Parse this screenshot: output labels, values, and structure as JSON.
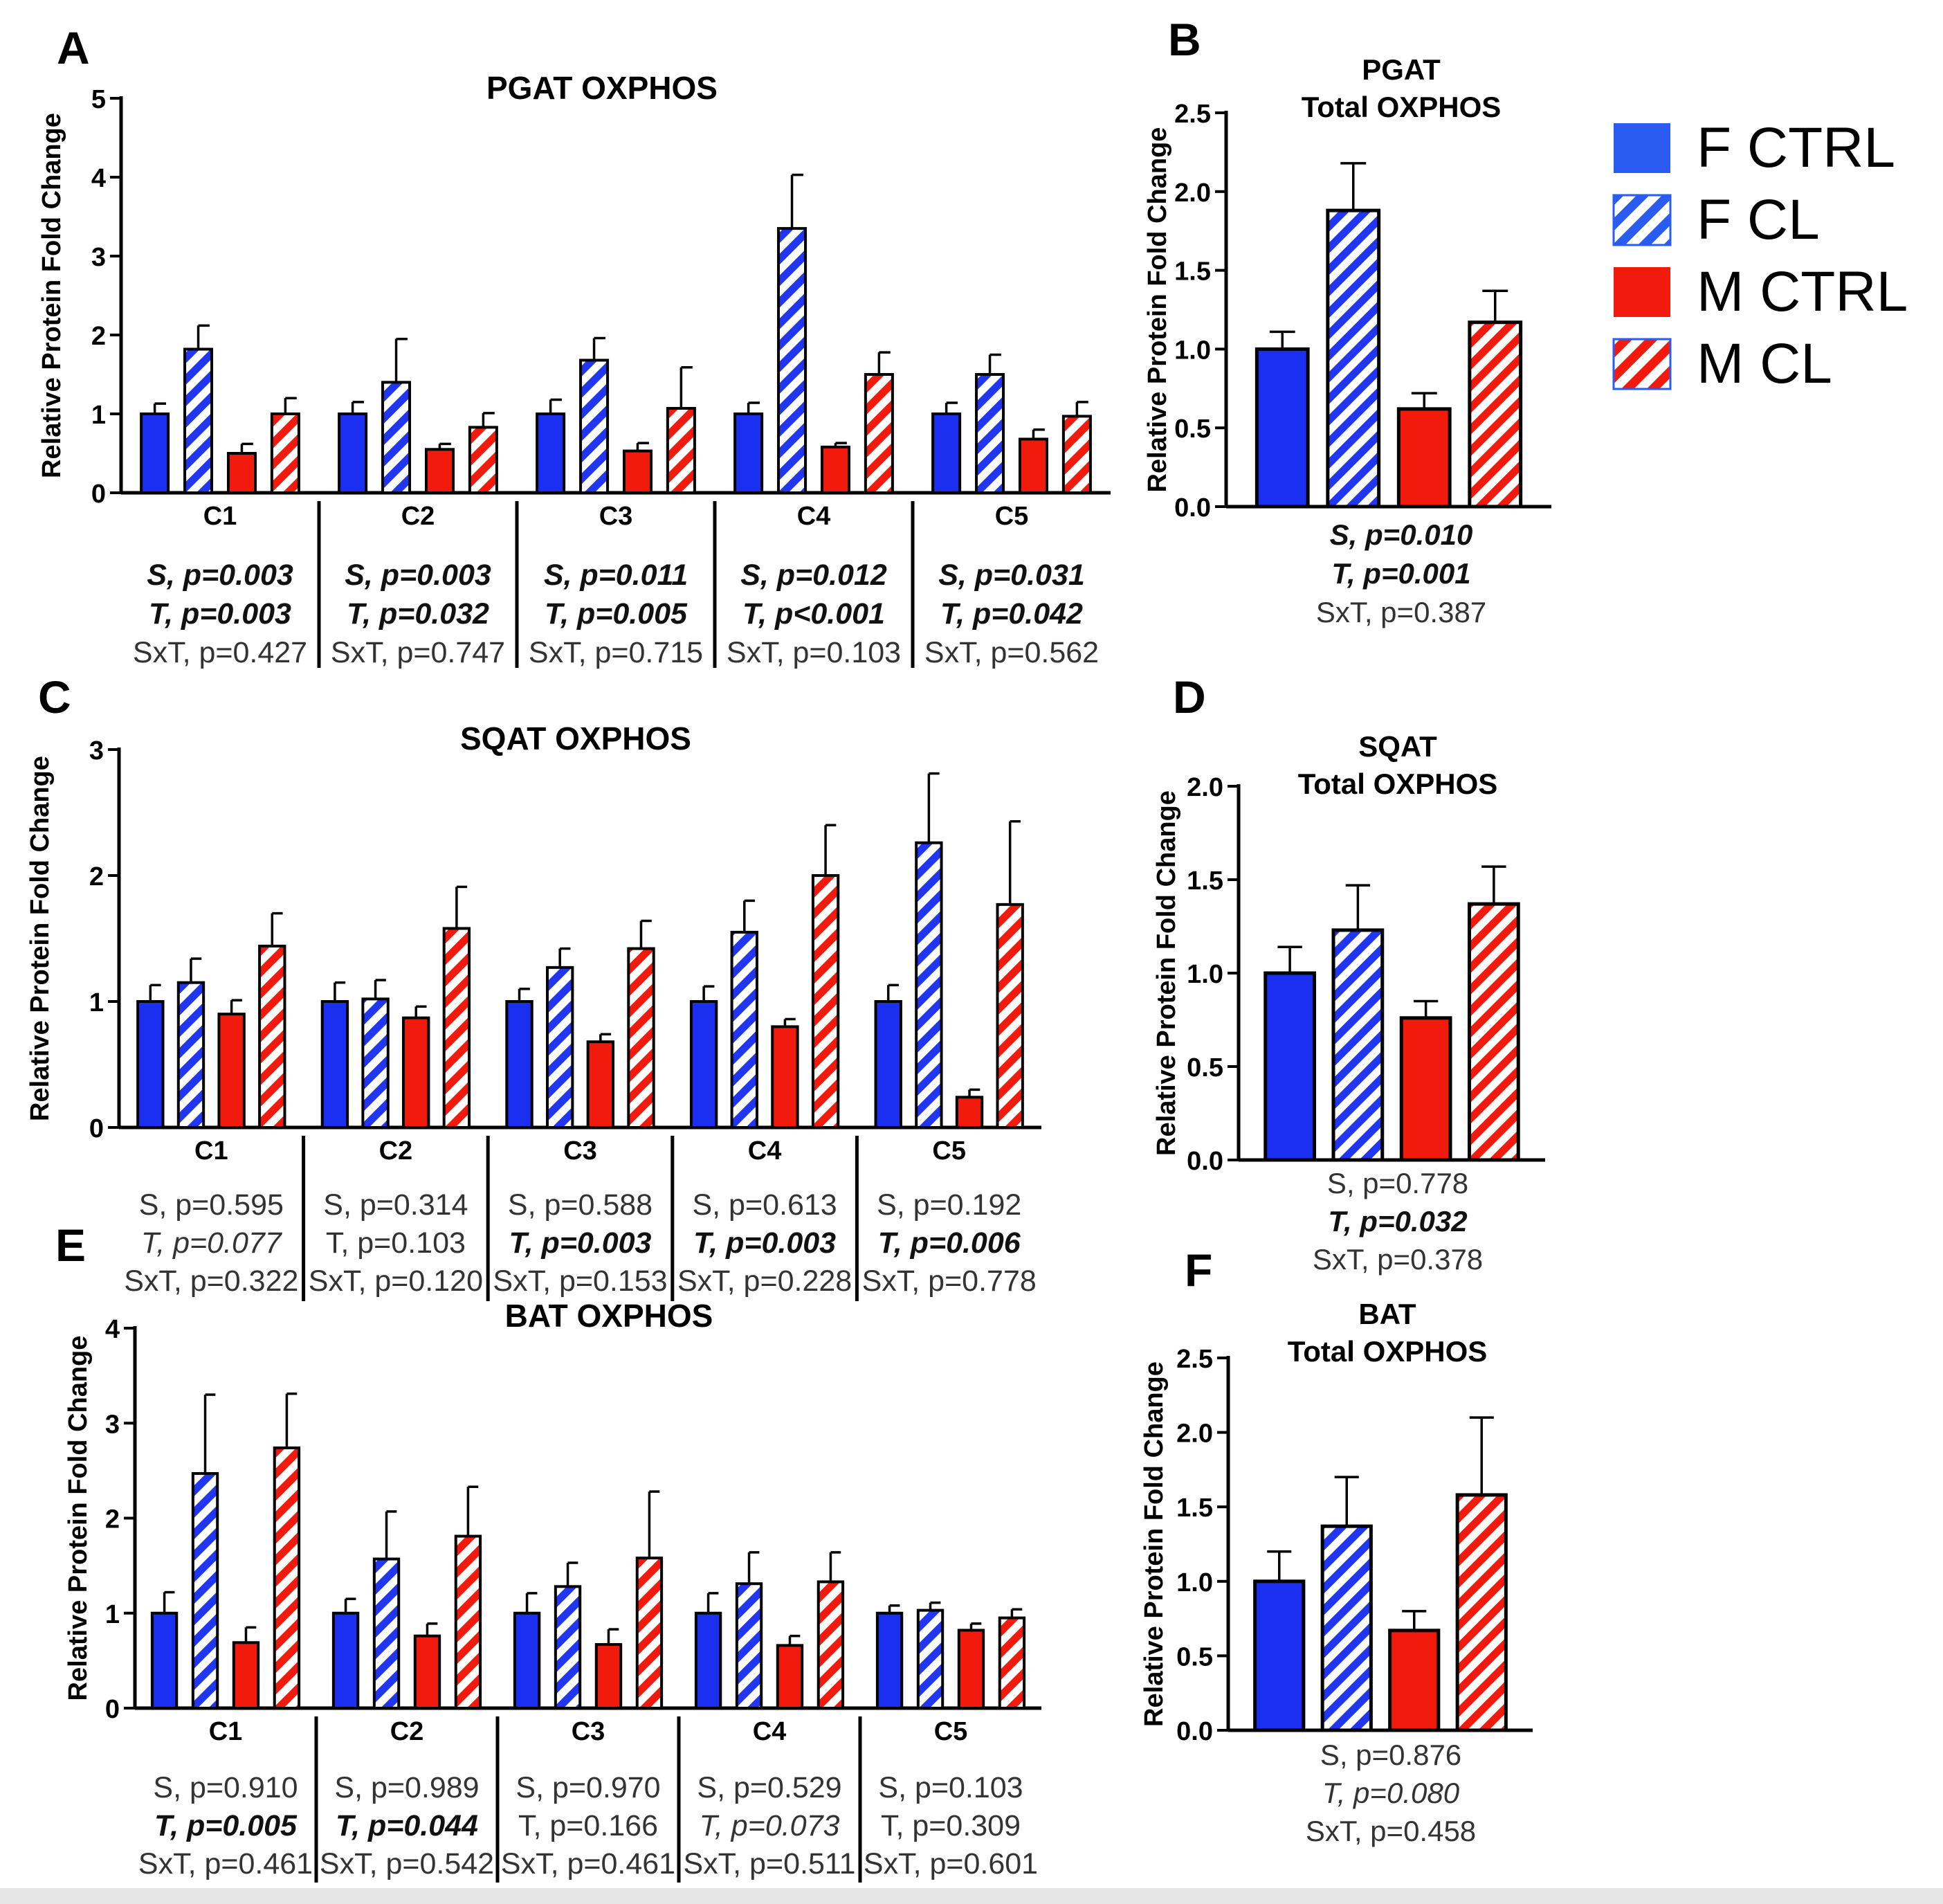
{
  "colors": {
    "f_ctrl": "#1a2ff0",
    "m_ctrl": "#f21a0c",
    "stroke": "#000000",
    "stats_normal": "#333333",
    "stats_bold": "#111111"
  },
  "legend": {
    "entries": [
      {
        "label": "F CTRL",
        "color": "#2a5cf2",
        "hatched": false
      },
      {
        "label": "F CL",
        "color": "#2a5cf2",
        "hatched": true
      },
      {
        "label": "M CTRL",
        "color": "#f21a0c",
        "hatched": false
      },
      {
        "label": "M CL",
        "color": "#f21a0c",
        "hatched": true
      }
    ]
  },
  "chart_data": [
    {
      "panel": "A",
      "type": "bar",
      "title": "PGAT OXPHOS",
      "ylabel": "Relative Protein Fold Change",
      "ylim": [
        0,
        5
      ],
      "yticks": [
        "0",
        "1",
        "2",
        "3",
        "4",
        "5"
      ],
      "categories": [
        "C1",
        "C2",
        "C3",
        "C4",
        "C5"
      ],
      "series": [
        {
          "name": "F CTRL",
          "values": [
            1.0,
            1.0,
            1.0,
            1.0,
            1.0
          ],
          "errors": [
            0.13,
            0.15,
            0.18,
            0.14,
            0.14
          ]
        },
        {
          "name": "F CL",
          "values": [
            1.82,
            1.4,
            1.68,
            3.35,
            1.5
          ],
          "errors": [
            0.3,
            0.55,
            0.28,
            0.68,
            0.25
          ]
        },
        {
          "name": "M CTRL",
          "values": [
            0.5,
            0.55,
            0.53,
            0.58,
            0.68
          ],
          "errors": [
            0.12,
            0.07,
            0.1,
            0.05,
            0.12
          ]
        },
        {
          "name": "M CL",
          "values": [
            1.0,
            0.83,
            1.07,
            1.5,
            0.97
          ],
          "errors": [
            0.2,
            0.18,
            0.52,
            0.28,
            0.18
          ]
        }
      ],
      "stats": [
        [
          {
            "text": "S, p=0.003",
            "style": "bi"
          },
          {
            "text": "T, p=0.003",
            "style": "bi"
          },
          {
            "text": "SxT, p=0.427",
            "style": "n"
          }
        ],
        [
          {
            "text": "S, p=0.003",
            "style": "bi"
          },
          {
            "text": "T, p=0.032",
            "style": "bi"
          },
          {
            "text": "SxT, p=0.747",
            "style": "n"
          }
        ],
        [
          {
            "text": "S, p=0.011",
            "style": "bi"
          },
          {
            "text": "T, p=0.005",
            "style": "bi"
          },
          {
            "text": "SxT, p=0.715",
            "style": "n"
          }
        ],
        [
          {
            "text": "S, p=0.012",
            "style": "bi"
          },
          {
            "text": "T, p<0.001",
            "style": "bi"
          },
          {
            "text": "SxT, p=0.103",
            "style": "n"
          }
        ],
        [
          {
            "text": "S, p=0.031",
            "style": "bi"
          },
          {
            "text": "T, p=0.042",
            "style": "bi"
          },
          {
            "text": "SxT, p=0.562",
            "style": "n"
          }
        ]
      ]
    },
    {
      "panel": "B",
      "type": "bar",
      "title": [
        "PGAT",
        "Total OXPHOS"
      ],
      "ylabel": "Relative Protein Fold Change",
      "ylim": [
        0,
        2.5
      ],
      "yticks": [
        "0.0",
        "0.5",
        "1.0",
        "1.5",
        "2.0",
        "2.5"
      ],
      "series": [
        {
          "name": "F CTRL",
          "value": 1.0,
          "error": 0.11
        },
        {
          "name": "F CL",
          "value": 1.88,
          "error": 0.3
        },
        {
          "name": "M CTRL",
          "value": 0.62,
          "error": 0.1
        },
        {
          "name": "M CL",
          "value": 1.17,
          "error": 0.2
        }
      ],
      "stats": [
        {
          "text": "S, p=0.010",
          "style": "bi"
        },
        {
          "text": "T, p=0.001",
          "style": "bi"
        },
        {
          "text": "SxT, p=0.387",
          "style": "n"
        }
      ]
    },
    {
      "panel": "C",
      "type": "bar",
      "title": "SQAT OXPHOS",
      "ylabel": "Relative Protein Fold Change",
      "ylim": [
        0,
        3
      ],
      "yticks": [
        "0",
        "1",
        "2",
        "3"
      ],
      "categories": [
        "C1",
        "C2",
        "C3",
        "C4",
        "C5"
      ],
      "series": [
        {
          "name": "F CTRL",
          "values": [
            1.0,
            1.0,
            1.0,
            1.0,
            1.0
          ],
          "errors": [
            0.13,
            0.15,
            0.1,
            0.12,
            0.13
          ]
        },
        {
          "name": "F CL",
          "values": [
            1.15,
            1.02,
            1.27,
            1.55,
            2.26
          ],
          "errors": [
            0.19,
            0.15,
            0.15,
            0.25,
            0.55
          ]
        },
        {
          "name": "M CTRL",
          "values": [
            0.9,
            0.87,
            0.68,
            0.8,
            0.24
          ],
          "errors": [
            0.11,
            0.09,
            0.06,
            0.06,
            0.06
          ]
        },
        {
          "name": "M CL",
          "values": [
            1.44,
            1.58,
            1.42,
            2.0,
            1.77
          ],
          "errors": [
            0.26,
            0.33,
            0.22,
            0.4,
            0.66
          ]
        }
      ],
      "stats": [
        [
          {
            "text": "S, p=0.595",
            "style": "n"
          },
          {
            "text": "T, p=0.077",
            "style": "i"
          },
          {
            "text": "SxT, p=0.322",
            "style": "n"
          }
        ],
        [
          {
            "text": "S, p=0.314",
            "style": "n"
          },
          {
            "text": "T, p=0.103",
            "style": "n"
          },
          {
            "text": "SxT, p=0.120",
            "style": "n"
          }
        ],
        [
          {
            "text": "S, p=0.588",
            "style": "n"
          },
          {
            "text": "T, p=0.003",
            "style": "bi"
          },
          {
            "text": "SxT, p=0.153",
            "style": "n"
          }
        ],
        [
          {
            "text": "S, p=0.613",
            "style": "n"
          },
          {
            "text": "T, p=0.003",
            "style": "bi"
          },
          {
            "text": "SxT, p=0.228",
            "style": "n"
          }
        ],
        [
          {
            "text": "S, p=0.192",
            "style": "n"
          },
          {
            "text": "T, p=0.006",
            "style": "bi"
          },
          {
            "text": "SxT, p=0.778",
            "style": "n"
          }
        ]
      ]
    },
    {
      "panel": "D",
      "type": "bar",
      "title": [
        "SQAT",
        "Total OXPHOS"
      ],
      "ylabel": "Relative Protein Fold Change",
      "ylim": [
        0,
        2.0
      ],
      "yticks": [
        "0.0",
        "0.5",
        "1.0",
        "1.5",
        "2.0"
      ],
      "series": [
        {
          "name": "F CTRL",
          "value": 1.0,
          "error": 0.14
        },
        {
          "name": "F CL",
          "value": 1.23,
          "error": 0.24
        },
        {
          "name": "M CTRL",
          "value": 0.76,
          "error": 0.09
        },
        {
          "name": "M CL",
          "value": 1.37,
          "error": 0.2
        }
      ],
      "stats": [
        {
          "text": "S, p=0.778",
          "style": "n"
        },
        {
          "text": "T, p=0.032",
          "style": "bi"
        },
        {
          "text": "SxT, p=0.378",
          "style": "n"
        }
      ]
    },
    {
      "panel": "E",
      "type": "bar",
      "title": "BAT OXPHOS",
      "ylabel": "Relative Protein Fold Change",
      "ylim": [
        0,
        4
      ],
      "yticks": [
        "0",
        "1",
        "2",
        "3",
        "4"
      ],
      "categories": [
        "C1",
        "C2",
        "C3",
        "C4",
        "C5"
      ],
      "series": [
        {
          "name": "F CTRL",
          "values": [
            1.0,
            1.0,
            1.0,
            1.0,
            1.0
          ],
          "errors": [
            0.22,
            0.15,
            0.21,
            0.21,
            0.08
          ]
        },
        {
          "name": "F CL",
          "values": [
            2.47,
            1.57,
            1.28,
            1.31,
            1.03
          ],
          "errors": [
            0.83,
            0.5,
            0.25,
            0.33,
            0.08
          ]
        },
        {
          "name": "M CTRL",
          "values": [
            0.69,
            0.76,
            0.67,
            0.66,
            0.82
          ],
          "errors": [
            0.16,
            0.13,
            0.16,
            0.1,
            0.07
          ]
        },
        {
          "name": "M CL",
          "values": [
            2.74,
            1.81,
            1.58,
            1.33,
            0.95
          ],
          "errors": [
            0.57,
            0.52,
            0.7,
            0.31,
            0.09
          ]
        }
      ],
      "stats": [
        [
          {
            "text": "S, p=0.910",
            "style": "n"
          },
          {
            "text": "T, p=0.005",
            "style": "bi"
          },
          {
            "text": "SxT, p=0.461",
            "style": "n"
          }
        ],
        [
          {
            "text": "S, p=0.989",
            "style": "n"
          },
          {
            "text": "T, p=0.044",
            "style": "bi"
          },
          {
            "text": "SxT, p=0.542",
            "style": "n"
          }
        ],
        [
          {
            "text": "S, p=0.970",
            "style": "n"
          },
          {
            "text": "T, p=0.166",
            "style": "n"
          },
          {
            "text": "SxT, p=0.461",
            "style": "n"
          }
        ],
        [
          {
            "text": "S, p=0.529",
            "style": "n"
          },
          {
            "text": "T, p=0.073",
            "style": "i"
          },
          {
            "text": "SxT, p=0.511",
            "style": "n"
          }
        ],
        [
          {
            "text": "S, p=0.103",
            "style": "n"
          },
          {
            "text": "T, p=0.309",
            "style": "n"
          },
          {
            "text": "SxT, p=0.601",
            "style": "n"
          }
        ]
      ]
    },
    {
      "panel": "F",
      "type": "bar",
      "title": [
        "BAT",
        "Total OXPHOS"
      ],
      "ylabel": "Relative Protein Fold Change",
      "ylim": [
        0,
        2.5
      ],
      "yticks": [
        "0.0",
        "0.5",
        "1.0",
        "1.5",
        "2.0",
        "2.5"
      ],
      "series": [
        {
          "name": "F CTRL",
          "value": 1.0,
          "error": 0.2
        },
        {
          "name": "F CL",
          "value": 1.37,
          "error": 0.33
        },
        {
          "name": "M CTRL",
          "value": 0.67,
          "error": 0.13
        },
        {
          "name": "M CL",
          "value": 1.58,
          "error": 0.52
        }
      ],
      "stats": [
        {
          "text": "S, p=0.876",
          "style": "n"
        },
        {
          "text": "T, p=0.080",
          "style": "i"
        },
        {
          "text": "SxT, p=0.458",
          "style": "n"
        }
      ]
    }
  ]
}
